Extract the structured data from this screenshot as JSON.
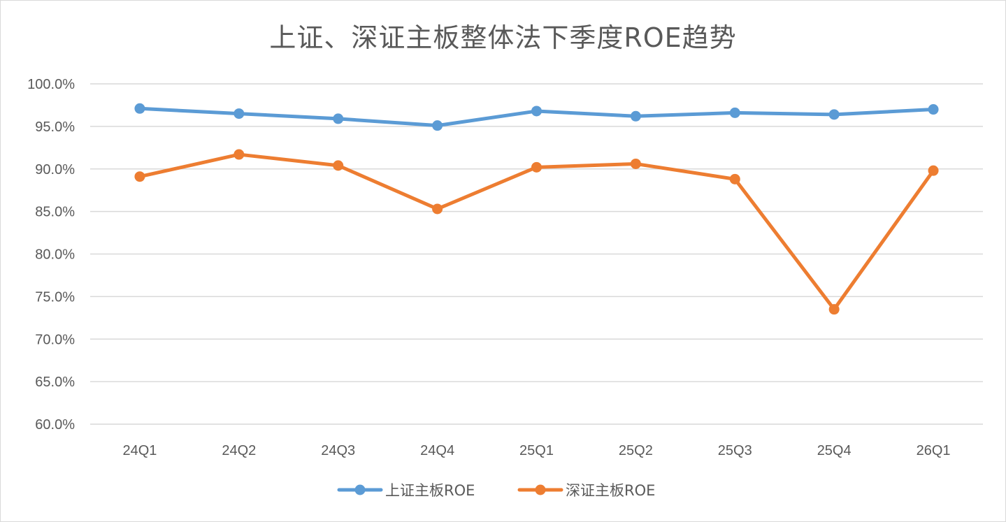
{
  "chart_data": {
    "type": "line",
    "title": "上证、深证主板整体法下季度ROE趋势",
    "xlabel": "",
    "ylabel": "",
    "categories": [
      "24Q1",
      "24Q2",
      "24Q3",
      "24Q4",
      "25Q1",
      "25Q2",
      "25Q3",
      "25Q4",
      "26Q1"
    ],
    "ylim": [
      60,
      100
    ],
    "ytick_step": 5,
    "ytick_labels": [
      "60.0%",
      "65.0%",
      "70.0%",
      "75.0%",
      "80.0%",
      "85.0%",
      "90.0%",
      "95.0%",
      "100.0%"
    ],
    "grid": true,
    "legend_position": "bottom",
    "series": [
      {
        "name": "上证主板ROE",
        "color": "#5b9bd5",
        "values": [
          97.1,
          96.5,
          95.9,
          95.1,
          96.8,
          96.2,
          96.6,
          96.4,
          97.0
        ]
      },
      {
        "name": "深证主板ROE",
        "color": "#ed7d31",
        "values": [
          89.1,
          91.7,
          90.4,
          85.3,
          90.2,
          90.6,
          88.8,
          73.5,
          89.8
        ]
      }
    ]
  }
}
